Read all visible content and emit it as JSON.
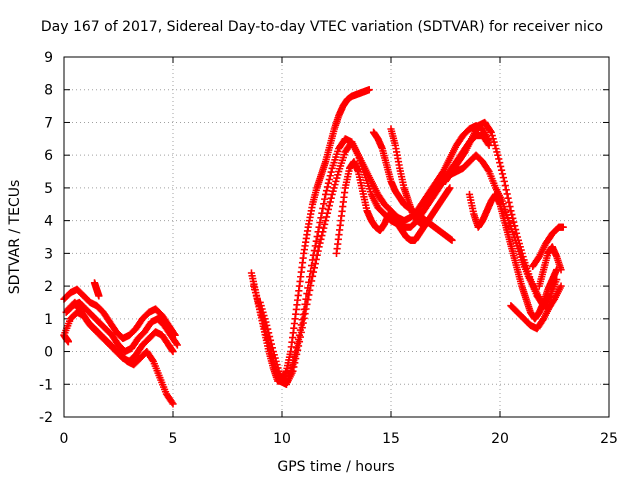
{
  "chart_data": {
    "type": "scatter",
    "title": "Day 167 of 2017, Sidereal Day-to-day VTEC variation (SDTVAR) for receiver nico",
    "xlabel": "GPS time / hours",
    "ylabel": "SDTVAR / TECUs",
    "xlim": [
      0,
      25
    ],
    "ylim": [
      -2,
      9
    ],
    "xticks": [
      "0",
      "5",
      "10",
      "15",
      "20",
      "25"
    ],
    "yticks": [
      "-2",
      "-1",
      "0",
      "1",
      "2",
      "3",
      "4",
      "5",
      "6",
      "7",
      "8",
      "9"
    ],
    "grid": true,
    "marker": "+",
    "marker_color": "#ff0000",
    "series": [
      {
        "x": [
          0.0,
          0.3,
          0.6,
          0.9,
          1.2,
          1.5,
          1.8,
          2.1,
          2.4,
          2.7,
          3.0,
          3.3,
          3.6,
          3.9,
          4.2,
          4.5,
          4.8,
          5.1
        ],
        "y": [
          1.6,
          1.8,
          1.9,
          1.7,
          1.5,
          1.4,
          1.2,
          0.9,
          0.6,
          0.4,
          0.5,
          0.7,
          1.0,
          1.2,
          1.3,
          1.1,
          0.8,
          0.5
        ]
      },
      {
        "x": [
          0.1,
          0.4,
          0.7,
          1.0,
          1.3,
          1.6,
          1.9,
          2.2,
          2.5,
          2.8,
          3.1,
          3.4,
          3.7,
          4.0,
          4.3,
          4.6,
          4.9,
          5.2
        ],
        "y": [
          1.2,
          1.4,
          1.5,
          1.3,
          1.1,
          0.9,
          0.7,
          0.5,
          0.2,
          0.0,
          0.1,
          0.4,
          0.6,
          0.9,
          1.0,
          0.8,
          0.5,
          0.2
        ]
      },
      {
        "x": [
          0.0,
          0.3,
          0.6,
          0.9,
          1.2,
          1.5,
          1.8,
          2.1,
          2.4,
          2.7,
          3.0,
          3.3,
          3.6,
          3.9,
          4.2,
          4.5,
          4.8,
          5.0
        ],
        "y": [
          0.5,
          1.0,
          1.2,
          1.1,
          0.8,
          0.6,
          0.4,
          0.2,
          0.0,
          -0.2,
          -0.3,
          -0.1,
          0.2,
          0.4,
          0.6,
          0.5,
          0.2,
          0.0
        ]
      },
      {
        "x": [
          0.2,
          0.5,
          0.8,
          1.1,
          1.4,
          1.7,
          2.0,
          2.3,
          2.6,
          2.9,
          3.2,
          3.5,
          3.8,
          4.1,
          4.4,
          4.7,
          5.0
        ],
        "y": [
          1.3,
          1.5,
          1.2,
          0.9,
          0.7,
          0.5,
          0.3,
          0.1,
          -0.1,
          -0.3,
          -0.4,
          -0.2,
          0.0,
          -0.3,
          -0.8,
          -1.3,
          -1.6
        ]
      },
      {
        "x": [
          0.0,
          0.1,
          0.15,
          0.2
        ],
        "y": [
          0.5,
          0.4,
          0.35,
          0.3
        ]
      },
      {
        "x": [
          1.4,
          1.5,
          1.6
        ],
        "y": [
          2.1,
          1.9,
          1.7
        ]
      },
      {
        "x": [
          8.6,
          8.8,
          9.0,
          9.2,
          9.4,
          9.6,
          9.8,
          10.0,
          10.2,
          10.4,
          10.6,
          10.8,
          11.0,
          11.2,
          11.4,
          11.6,
          11.8,
          12.0,
          12.2,
          12.4,
          12.6,
          12.8,
          13.0,
          13.2,
          13.4,
          13.6,
          13.8,
          14.0
        ],
        "y": [
          2.4,
          1.8,
          1.2,
          0.6,
          0.0,
          -0.5,
          -0.9,
          -0.9,
          -0.6,
          0.0,
          1.0,
          2.0,
          3.0,
          3.8,
          4.5,
          5.0,
          5.4,
          5.8,
          6.3,
          6.8,
          7.2,
          7.5,
          7.7,
          7.8,
          7.85,
          7.9,
          7.95,
          8.0
        ]
      },
      {
        "x": [
          8.7,
          9.0,
          9.3,
          9.6,
          9.9,
          10.2,
          10.5,
          10.8,
          11.1,
          11.4,
          11.7,
          12.0,
          12.3,
          12.6,
          12.9,
          13.2,
          13.5,
          13.8,
          14.1,
          14.4,
          14.7,
          15.0,
          15.3,
          15.6,
          15.9,
          16.2,
          16.5,
          16.8,
          17.1,
          17.4,
          17.7,
          18.0,
          18.3,
          18.6,
          18.9,
          19.2,
          19.5
        ],
        "y": [
          2.0,
          1.3,
          0.5,
          -0.3,
          -0.9,
          -1.0,
          -0.4,
          0.5,
          1.6,
          2.8,
          3.8,
          4.8,
          5.6,
          6.2,
          6.5,
          6.4,
          6.0,
          5.6,
          5.2,
          4.8,
          4.5,
          4.3,
          4.1,
          4.0,
          4.1,
          4.3,
          4.6,
          4.9,
          5.2,
          5.5,
          5.9,
          6.3,
          6.6,
          6.8,
          6.9,
          6.8,
          6.4
        ]
      },
      {
        "x": [
          9.0,
          9.3,
          9.6,
          9.9,
          10.2,
          10.5,
          10.8,
          11.1,
          11.4,
          11.7,
          12.0,
          12.3,
          12.6,
          12.9,
          13.2,
          13.5,
          13.8,
          14.1,
          14.4,
          14.7,
          15.0,
          15.3,
          15.6,
          15.9,
          16.2,
          16.5,
          16.8,
          17.1,
          17.4,
          17.7,
          18.0,
          18.3,
          18.6,
          18.9,
          19.2,
          19.5
        ],
        "y": [
          1.5,
          0.8,
          0.0,
          -0.7,
          -1.0,
          -0.6,
          0.3,
          1.3,
          2.3,
          3.2,
          4.0,
          4.8,
          5.5,
          6.1,
          6.4,
          6.0,
          5.4,
          4.8,
          4.4,
          4.2,
          4.0,
          3.9,
          3.8,
          3.8,
          4.0,
          4.3,
          4.6,
          4.9,
          5.2,
          5.5,
          5.8,
          6.1,
          6.4,
          6.6,
          6.6,
          6.3
        ]
      },
      {
        "x": [
          12.5,
          12.7,
          12.9,
          13.1,
          13.3,
          13.5,
          13.7,
          13.9,
          14.1,
          14.3,
          14.5,
          14.7,
          14.9,
          15.1,
          15.3,
          15.5,
          15.7,
          15.9,
          16.1,
          16.3,
          16.5,
          16.7,
          16.9,
          17.1,
          17.3,
          17.5,
          17.7
        ],
        "y": [
          3.0,
          4.0,
          5.0,
          5.6,
          5.8,
          5.5,
          4.9,
          4.3,
          4.0,
          3.8,
          3.7,
          3.9,
          4.2,
          4.1,
          3.9,
          3.7,
          3.5,
          3.4,
          3.4,
          3.6,
          3.8,
          4.0,
          4.2,
          4.4,
          4.6,
          4.8,
          5.0
        ]
      },
      {
        "x": [
          14.2,
          14.4,
          14.6,
          14.8,
          15.0,
          15.2,
          15.4,
          15.6,
          15.8,
          16.0,
          16.2,
          16.4,
          16.6,
          16.8,
          17.0,
          17.2,
          17.4,
          17.6,
          17.8
        ],
        "y": [
          6.7,
          6.5,
          6.2,
          5.7,
          5.2,
          4.9,
          4.7,
          4.5,
          4.4,
          4.3,
          4.2,
          4.1,
          4.0,
          3.9,
          3.8,
          3.7,
          3.6,
          3.5,
          3.4
        ]
      },
      {
        "x": [
          15.0,
          15.2,
          15.4,
          15.6,
          15.8,
          16.0,
          16.2,
          16.4
        ],
        "y": [
          6.8,
          6.3,
          5.6,
          5.0,
          4.6,
          4.2,
          4.0,
          3.9
        ]
      },
      {
        "x": [
          16.5,
          16.8,
          17.1,
          17.4,
          17.7,
          18.0,
          18.3,
          18.6,
          18.9,
          19.2,
          19.5,
          19.8,
          20.1,
          20.4,
          20.7,
          21.0,
          21.3,
          21.6,
          21.9,
          22.2,
          22.5,
          22.8
        ],
        "y": [
          4.5,
          4.8,
          5.0,
          5.2,
          5.4,
          5.5,
          5.6,
          5.8,
          6.0,
          5.8,
          5.5,
          5.0,
          4.6,
          4.0,
          3.4,
          2.8,
          2.3,
          1.9,
          1.5,
          1.3,
          1.6,
          2.0
        ]
      },
      {
        "x": [
          17.5,
          17.8,
          18.1,
          18.4,
          18.7,
          19.0,
          19.3,
          19.6,
          19.9,
          20.2,
          20.5,
          20.8,
          21.1,
          21.4,
          21.7,
          22.0,
          22.3,
          22.6
        ],
        "y": [
          5.2,
          5.5,
          5.8,
          6.1,
          6.5,
          6.9,
          7.0,
          6.7,
          6.0,
          5.2,
          4.3,
          3.5,
          2.8,
          2.2,
          1.7,
          1.4,
          1.7,
          2.2
        ]
      },
      {
        "x": [
          18.6,
          18.8,
          19.0,
          19.2,
          19.4,
          19.6,
          19.8,
          20.0,
          20.2,
          20.4,
          20.6,
          20.8,
          21.0,
          21.2,
          21.4,
          21.6,
          21.8,
          22.0,
          22.2,
          22.4,
          22.6
        ],
        "y": [
          4.8,
          4.2,
          3.8,
          4.0,
          4.3,
          4.6,
          4.8,
          4.5,
          4.0,
          3.5,
          3.0,
          2.5,
          2.0,
          1.6,
          1.2,
          1.0,
          1.2,
          1.5,
          1.9,
          2.2,
          2.5
        ]
      },
      {
        "x": [
          20.5,
          20.8,
          21.1,
          21.4,
          21.7,
          22.0,
          22.3
        ],
        "y": [
          1.4,
          1.2,
          1.0,
          0.8,
          0.7,
          1.0,
          1.4
        ]
      },
      {
        "x": [
          21.5,
          21.8,
          22.1,
          22.4,
          22.7,
          22.9
        ],
        "y": [
          2.6,
          2.9,
          3.3,
          3.6,
          3.8,
          3.8
        ]
      },
      {
        "x": [
          21.8,
          22.0,
          22.2,
          22.4,
          22.6,
          22.8
        ],
        "y": [
          2.0,
          2.5,
          3.0,
          3.2,
          2.9,
          2.5
        ]
      }
    ]
  }
}
